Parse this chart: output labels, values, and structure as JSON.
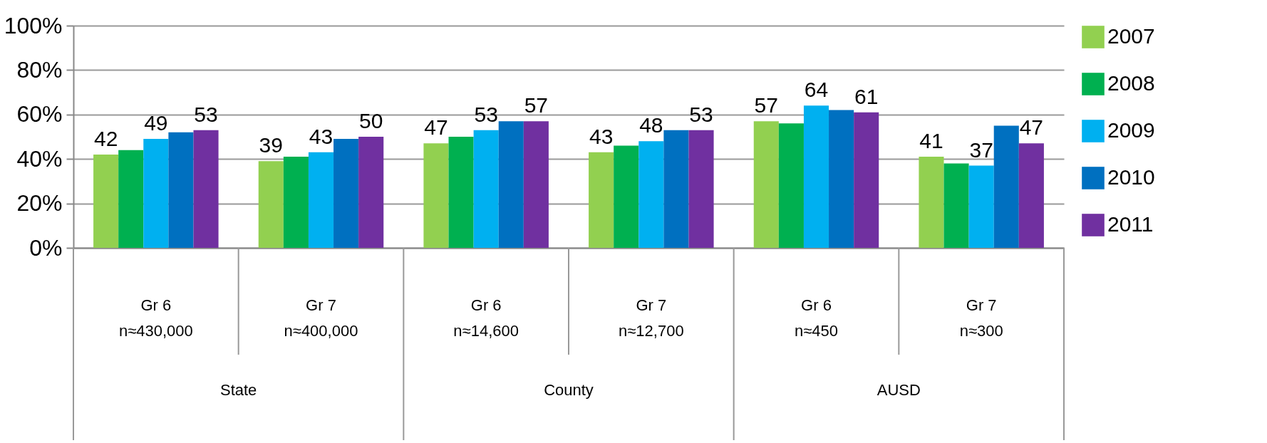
{
  "chart_data": {
    "type": "bar",
    "categories": [
      "Gr 6\nn≈430,000",
      "Gr 7\nn≈400,000",
      "Gr 6\nn≈14,600",
      "Gr 7\nn≈12,700",
      "Gr 6\nn≈450",
      "Gr 7\nn≈300"
    ],
    "series": [
      {
        "name": "2007",
        "color": "#92d050",
        "values": [
          42,
          39,
          47,
          43,
          57,
          41
        ],
        "value_labels": [
          "42",
          "39",
          "47",
          "43",
          "57",
          "41"
        ]
      },
      {
        "name": "2008",
        "color": "#00b050",
        "values": [
          44,
          41,
          50,
          46,
          56,
          38
        ],
        "value_labels": [
          null,
          null,
          null,
          null,
          null,
          null
        ]
      },
      {
        "name": "2009",
        "color": "#00b0f0",
        "values": [
          49,
          43,
          53,
          48,
          64,
          37
        ],
        "value_labels": [
          "49",
          "43",
          "53",
          "48",
          "64",
          "37"
        ]
      },
      {
        "name": "2010",
        "color": "#0070c0",
        "values": [
          52,
          49,
          57,
          53,
          62,
          55
        ],
        "value_labels": [
          null,
          null,
          null,
          null,
          null,
          null
        ]
      },
      {
        "name": "2011",
        "color": "#7030a0",
        "values": [
          53,
          50,
          57,
          53,
          61,
          47
        ],
        "value_labels": [
          "53",
          "50",
          "57",
          "53",
          "61",
          "47"
        ]
      }
    ],
    "annotations": [
      "State",
      "County",
      "AUSD"
    ],
    "ylim": [
      0,
      100
    ],
    "yticks": [
      {
        "value": 0,
        "label": "0%"
      },
      {
        "value": 20,
        "label": "20%"
      },
      {
        "value": 40,
        "label": "40%"
      },
      {
        "value": 60,
        "label": "60%"
      },
      {
        "value": 80,
        "label": "80%"
      },
      {
        "value": 100,
        "label": "100%"
      }
    ],
    "grid": "y",
    "legend": "right"
  }
}
